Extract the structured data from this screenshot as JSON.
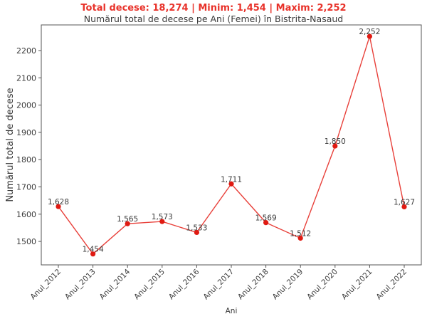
{
  "header": {
    "summary": "Total decese: 18,274 | Minim: 1,454 | Maxim: 2,252"
  },
  "chart_data": {
    "type": "line",
    "title": "Numărul total de decese pe Ani (Femei) în Bistrita-Nasaud",
    "xlabel": "Ani",
    "ylabel": "Numărul total de decese",
    "categories": [
      "Anul_2012",
      "Anul_2013",
      "Anul_2014",
      "Anul_2015",
      "Anul_2016",
      "Anul_2017",
      "Anul_2018",
      "Anul_2019",
      "Anul_2020",
      "Anul_2021",
      "Anul_2022"
    ],
    "values": [
      1628,
      1454,
      1565,
      1573,
      1533,
      1711,
      1569,
      1512,
      1850,
      2252,
      1627
    ],
    "data_labels": [
      "1,628",
      "1,454",
      "1,565",
      "1,573",
      "1,533",
      "1,711",
      "1,569",
      "1,512",
      "1,850",
      "2,252",
      "1,627"
    ],
    "ylim": [
      1414,
      2294
    ],
    "yticks": [
      1500,
      1600,
      1700,
      1800,
      1900,
      2000,
      2100,
      2200
    ],
    "grid": false,
    "legend": "none",
    "colors": {
      "line": "#e8403a",
      "marker": "#e01a12",
      "suptitle": "#e8322a",
      "axis": "#555555",
      "text": "#3a3a3a"
    }
  }
}
